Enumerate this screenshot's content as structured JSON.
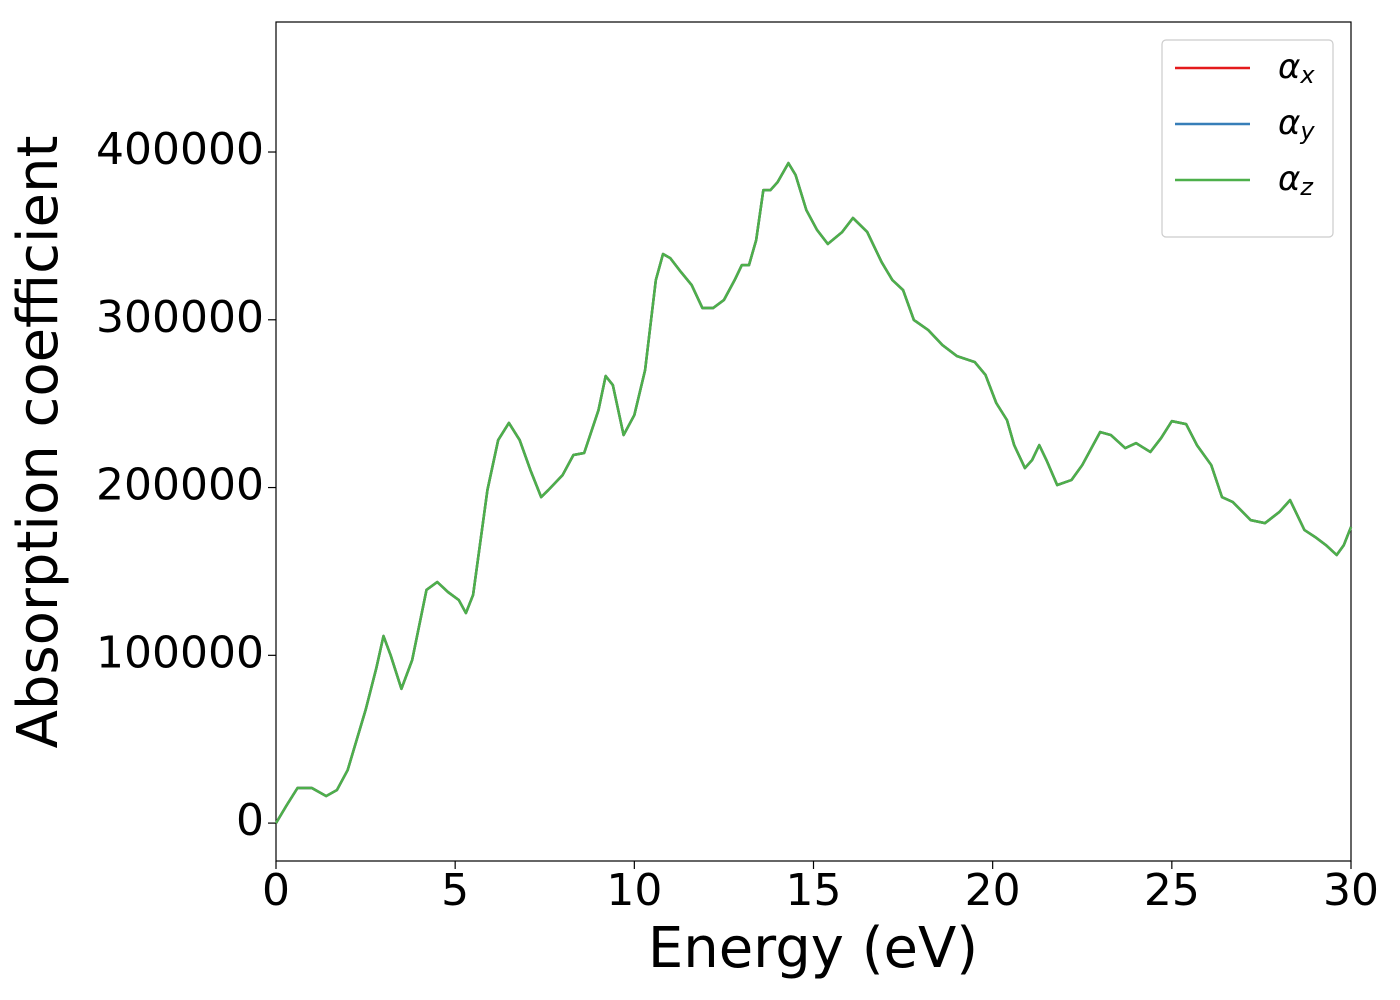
{
  "chart_data": {
    "type": "line",
    "xlabel": "Energy (eV)",
    "ylabel": "Absorption coefficient",
    "xlim": [
      0,
      30
    ],
    "xticks": [
      0,
      5,
      10,
      15,
      20,
      25,
      30
    ],
    "ylim": [
      -22600,
      477500
    ],
    "yticks": [
      0,
      100000,
      200000,
      300000,
      400000
    ],
    "legend": "upper right",
    "x": [
      0,
      0.3,
      0.6,
      1.0,
      1.4,
      1.7,
      2.0,
      2.5,
      2.8,
      3.0,
      3.2,
      3.5,
      3.8,
      4.2,
      4.5,
      4.8,
      5.1,
      5.3,
      5.5,
      5.9,
      6.2,
      6.5,
      6.8,
      7.1,
      7.4,
      7.6,
      8.0,
      8.3,
      8.6,
      9.0,
      9.2,
      9.4,
      9.7,
      10.0,
      10.3,
      10.6,
      10.8,
      11.0,
      11.3,
      11.6,
      11.9,
      12.2,
      12.5,
      12.8,
      13.0,
      13.2,
      13.4,
      13.6,
      13.8,
      14.0,
      14.3,
      14.5,
      14.8,
      15.1,
      15.4,
      15.8,
      16.1,
      16.5,
      16.9,
      17.2,
      17.5,
      17.8,
      18.2,
      18.6,
      19.0,
      19.5,
      19.8,
      20.1,
      20.4,
      20.6,
      20.9,
      21.1,
      21.3,
      21.5,
      21.8,
      22.2,
      22.5,
      23.0,
      23.3,
      23.7,
      24.0,
      24.4,
      24.7,
      25.0,
      25.4,
      25.7,
      26.1,
      26.4,
      26.7,
      27.2,
      27.6,
      28.0,
      28.3,
      28.7,
      29.0,
      29.3,
      29.6,
      29.8,
      30.0
    ],
    "series": [
      {
        "name": "αx",
        "color": "#e41a1c",
        "values": [
          0,
          10700,
          20900,
          20900,
          16100,
          19700,
          31600,
          67400,
          92400,
          111500,
          100000,
          80000,
          97200,
          139000,
          143700,
          137700,
          133000,
          125200,
          136000,
          198500,
          228300,
          238500,
          228300,
          210400,
          194300,
          198500,
          207500,
          219400,
          220600,
          246200,
          266500,
          261100,
          231300,
          243200,
          270000,
          323700,
          339200,
          336800,
          328500,
          320700,
          307000,
          307000,
          311800,
          323700,
          332600,
          332600,
          347500,
          377300,
          377300,
          382100,
          393400,
          386300,
          365400,
          353500,
          345200,
          352300,
          360700,
          352300,
          334400,
          323700,
          317700,
          299900,
          293900,
          284900,
          278400,
          274800,
          267100,
          250400,
          240200,
          225300,
          211600,
          216400,
          225300,
          216400,
          201500,
          204500,
          213400,
          233100,
          231300,
          223500,
          226500,
          221200,
          229500,
          239600,
          237800,
          225300,
          213400,
          194300,
          191400,
          180600,
          178800,
          185400,
          192500,
          174700,
          170500,
          165700,
          159800,
          165700,
          176500
        ]
      },
      {
        "name": "αy",
        "color": "#377eb8",
        "values": [
          0,
          10700,
          20900,
          20900,
          16100,
          19700,
          31600,
          67400,
          92400,
          111500,
          100000,
          80000,
          97200,
          139000,
          143700,
          137700,
          133000,
          125200,
          136000,
          198500,
          228300,
          238500,
          228300,
          210400,
          194300,
          198500,
          207500,
          219400,
          220600,
          246200,
          266500,
          261100,
          231300,
          243200,
          270000,
          323700,
          339200,
          336800,
          328500,
          320700,
          307000,
          307000,
          311800,
          323700,
          332600,
          332600,
          347500,
          377300,
          377300,
          382100,
          393400,
          386300,
          365400,
          353500,
          345200,
          352300,
          360700,
          352300,
          334400,
          323700,
          317700,
          299900,
          293900,
          284900,
          278400,
          274800,
          267100,
          250400,
          240200,
          225300,
          211600,
          216400,
          225300,
          216400,
          201500,
          204500,
          213400,
          233100,
          231300,
          223500,
          226500,
          221200,
          229500,
          239600,
          237800,
          225300,
          213400,
          194300,
          191400,
          180600,
          178800,
          185400,
          192500,
          174700,
          170500,
          165700,
          159800,
          165700,
          176500
        ]
      },
      {
        "name": "αz",
        "color": "#4daf4a",
        "values": [
          0,
          10700,
          20900,
          20900,
          16100,
          19700,
          31600,
          67400,
          92400,
          111500,
          100000,
          80000,
          97200,
          139000,
          143700,
          137700,
          133000,
          125200,
          136000,
          198500,
          228300,
          238500,
          228300,
          210400,
          194300,
          198500,
          207500,
          219400,
          220600,
          246200,
          266500,
          261100,
          231300,
          243200,
          270000,
          323700,
          339200,
          336800,
          328500,
          320700,
          307000,
          307000,
          311800,
          323700,
          332600,
          332600,
          347500,
          377300,
          377300,
          382100,
          393400,
          386300,
          365400,
          353500,
          345200,
          352300,
          360700,
          352300,
          334400,
          323700,
          317700,
          299900,
          293900,
          284900,
          278400,
          274800,
          267100,
          250400,
          240200,
          225300,
          211600,
          216400,
          225300,
          216400,
          201500,
          204500,
          213400,
          233100,
          231300,
          223500,
          226500,
          221200,
          229500,
          239600,
          237800,
          225300,
          213400,
          194300,
          191400,
          180600,
          178800,
          185400,
          192500,
          174700,
          170500,
          165700,
          159800,
          165700,
          176500
        ]
      }
    ]
  }
}
